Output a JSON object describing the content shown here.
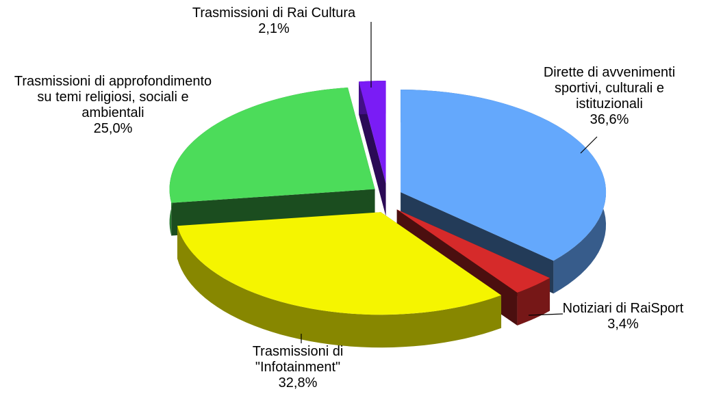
{
  "chart_data": {
    "type": "pie",
    "categories": [
      "Dirette di avvenimenti sportivi, culturali e istituzionali",
      "Notiziari di RaiSport",
      "Trasmissioni di \"Infotainment\"",
      "Trasmissioni di approfondimento su temi religiosi, sociali e ambientali",
      "Trasmissioni di Rai Cultura"
    ],
    "values": [
      36.6,
      3.4,
      32.8,
      25.0,
      2.1
    ],
    "value_labels": [
      "36,6%",
      "3,4%",
      "32,8%",
      "25,0%",
      "2,1%"
    ],
    "colors": [
      "#64a8fc",
      "#d62a2a",
      "#f5f500",
      "#4cdc5a",
      "#7a1cf5"
    ]
  }
}
